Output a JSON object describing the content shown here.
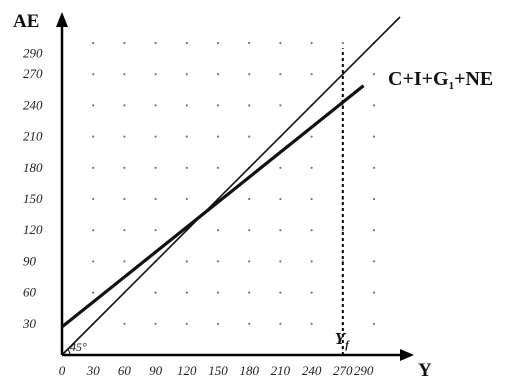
{
  "chart_data": {
    "type": "line",
    "title": "",
    "xlabel": "Y",
    "ylabel": "AE",
    "xlim": [
      0,
      300
    ],
    "ylim": [
      0,
      300
    ],
    "x_ticks": [
      "0",
      "30",
      "60",
      "90",
      "120",
      "150",
      "180",
      "210",
      "240",
      "270",
      "290"
    ],
    "y_ticks": [
      "30",
      "60",
      "90",
      "120",
      "150",
      "180",
      "210",
      "240",
      "270",
      "290"
    ],
    "grid": "dotted",
    "series": [
      {
        "name": "C+I+G1+NE",
        "label_main": "C+I+G",
        "label_sub": "1",
        "label_tail": "+NE",
        "x": [
          0,
          300
        ],
        "y": [
          27,
          267
        ],
        "color": "#111111",
        "width": "thick"
      },
      {
        "name": "",
        "x": [
          0,
          300
        ],
        "y": [
          0,
          300
        ],
        "color": "#111111",
        "width": "thin"
      }
    ],
    "vertical_line": {
      "x": 270,
      "style": "dotted",
      "label_main": "Y",
      "label_sub": "f"
    },
    "angle_label": "45°"
  }
}
